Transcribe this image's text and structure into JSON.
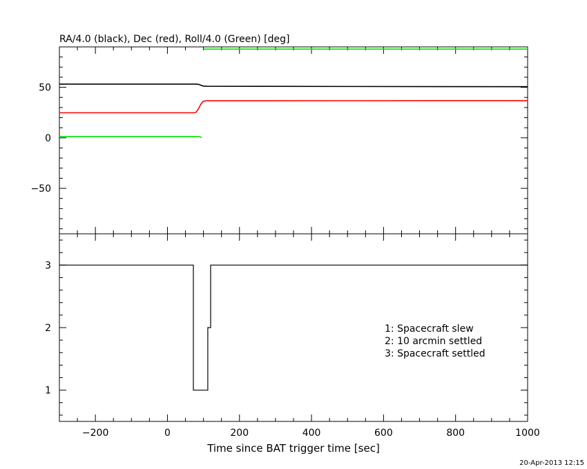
{
  "chart_data": [
    {
      "type": "line",
      "title": "RA/4.0 (black), Dec (red), Roll/4.0 (Green) [deg]",
      "xlim": [
        -300,
        1000
      ],
      "ylim": [
        -95,
        90
      ],
      "x_ticks": [
        -200,
        0,
        200,
        400,
        600,
        800,
        1000
      ],
      "y_ticks": [
        -50,
        0,
        50
      ],
      "grid": false,
      "series": [
        {
          "color": "#000000",
          "points": [
            [
              -300,
              53.2
            ],
            [
              80,
              53.2
            ],
            [
              85,
              53.0
            ],
            [
              90,
              52.5
            ],
            [
              95,
              51.8
            ],
            [
              100,
              51.2
            ],
            [
              110,
              51.0
            ],
            [
              1000,
              50.6
            ]
          ]
        },
        {
          "color": "#ff0000",
          "points": [
            [
              -300,
              24.8
            ],
            [
              75,
              24.8
            ],
            [
              80,
              25.5
            ],
            [
              85,
              28.0
            ],
            [
              90,
              31.5
            ],
            [
              95,
              34.5
            ],
            [
              100,
              36.2
            ],
            [
              110,
              36.7
            ],
            [
              1000,
              36.8
            ]
          ]
        },
        {
          "color": "#00dd00",
          "segments": [
            [
              [
                -300,
                1.2
              ],
              [
                85,
                1.2
              ],
              [
                90,
                1.0
              ],
              [
                95,
                0.3
              ]
            ],
            [
              [
                100,
                87.8
              ],
              [
                1000,
                87.8
              ]
            ]
          ]
        }
      ]
    },
    {
      "type": "line",
      "xlabel": "Time since BAT trigger time [sec]",
      "xlim": [
        -300,
        1000
      ],
      "ylim": [
        0.5,
        3.5
      ],
      "x_ticks": [
        -200,
        0,
        200,
        400,
        600,
        800,
        1000
      ],
      "y_ticks": [
        1,
        2,
        3
      ],
      "grid": false,
      "legend": [
        "1: Spacecraft slew",
        "2: 10 arcmin settled",
        "3: Spacecraft settled"
      ],
      "series": [
        {
          "color": "#000000",
          "step": true,
          "points": [
            [
              -300,
              3
            ],
            [
              72,
              3
            ],
            [
              72,
              1
            ],
            [
              112,
              1
            ],
            [
              112,
              2
            ],
            [
              120,
              2
            ],
            [
              120,
              3
            ],
            [
              1000,
              3
            ]
          ]
        }
      ]
    }
  ],
  "timestamp": "20-Apr-2013 12:15"
}
